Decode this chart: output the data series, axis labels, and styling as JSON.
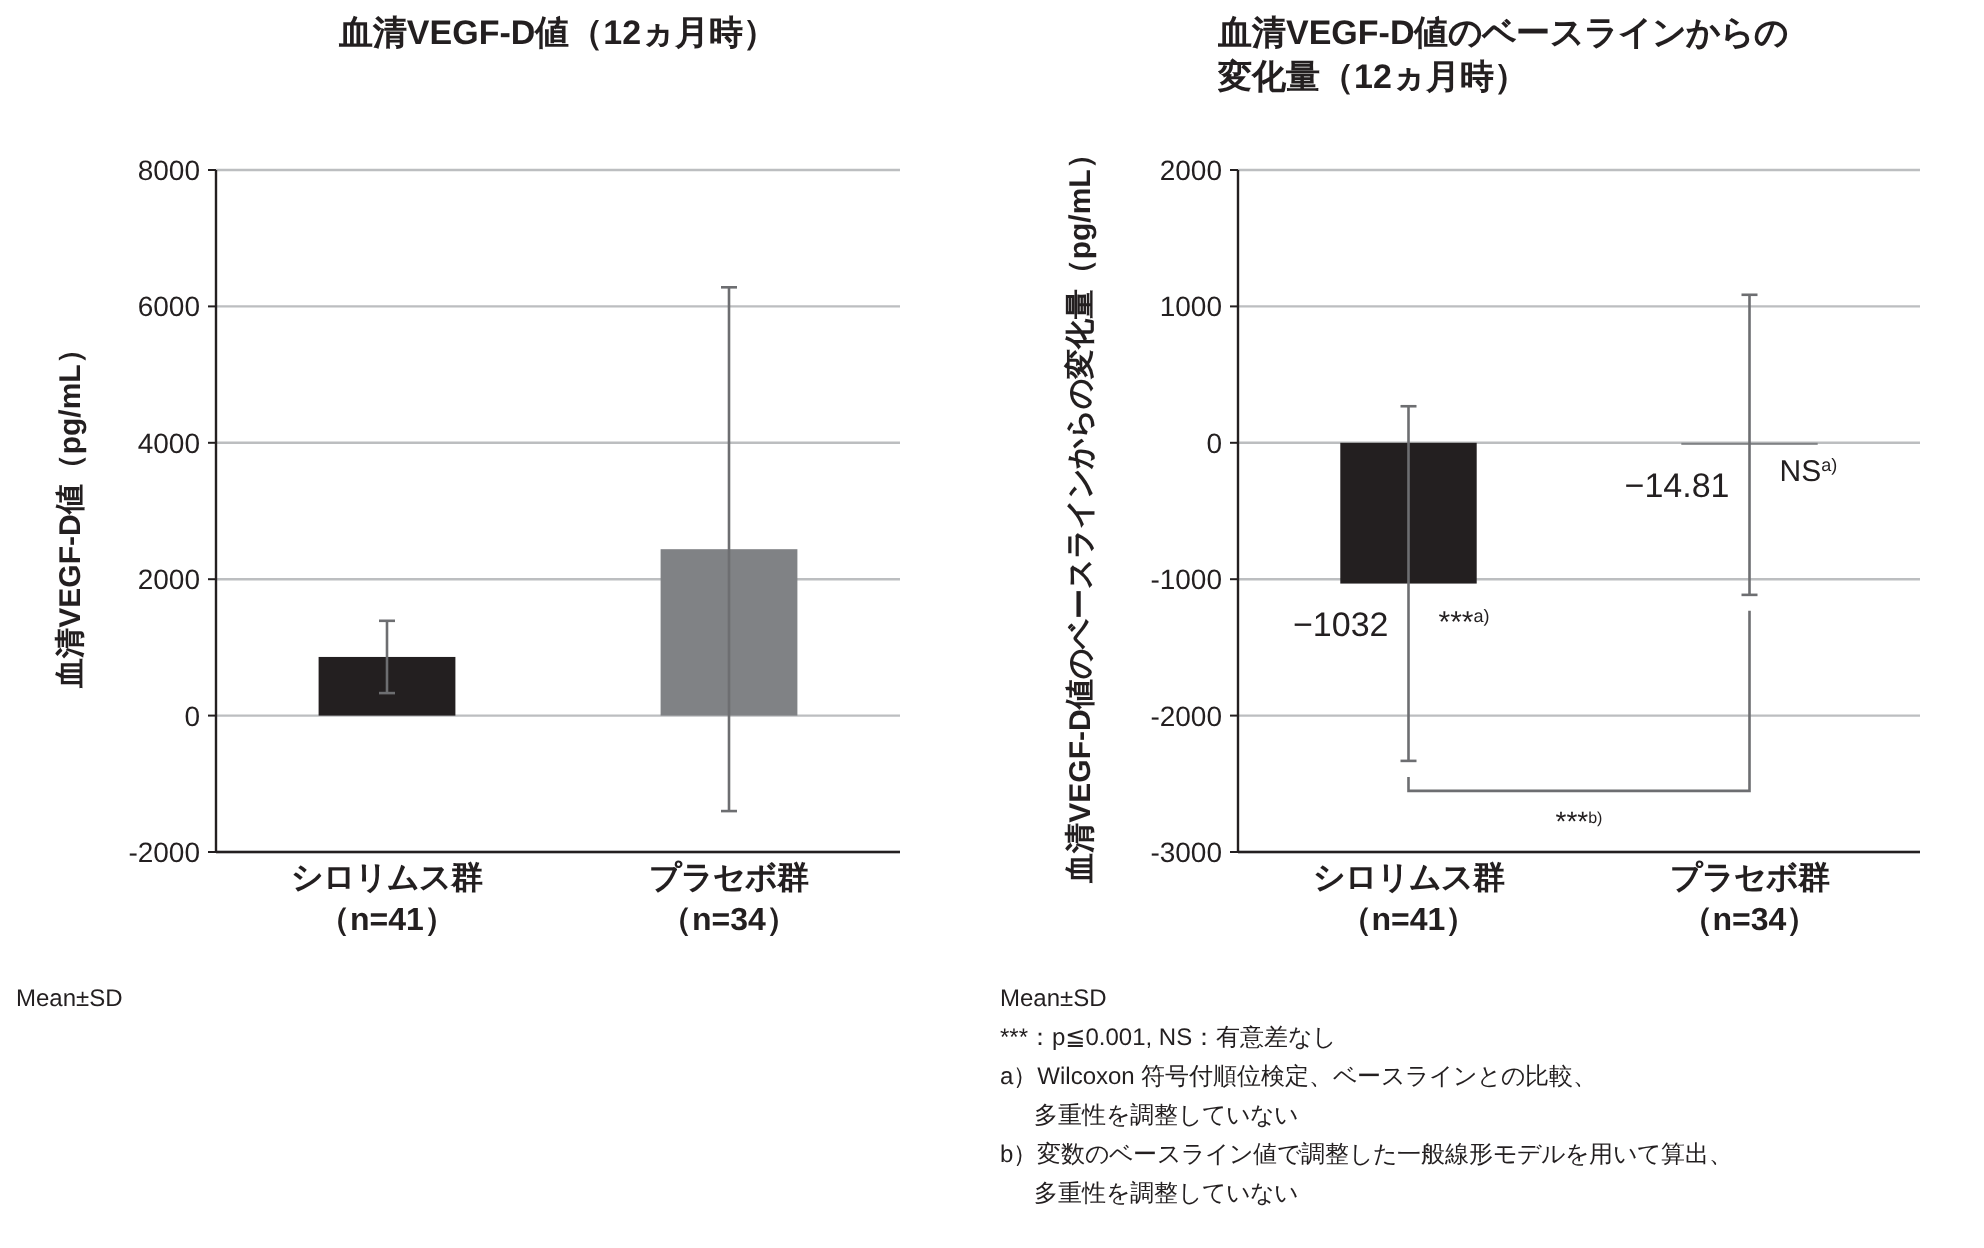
{
  "chart_data": [
    {
      "type": "bar",
      "title": "血清VEGF-D値（12ヵ月時）",
      "ylabel": "血清VEGF-D値（pg/mL）",
      "categories": [
        "シロリムス群（n=41）",
        "プラセボ群（n=34）"
      ],
      "values": [
        860,
        2440
      ],
      "colors": [
        "#231f20",
        "#808285"
      ],
      "errors": [
        530,
        3840
      ],
      "ylim": [
        -2000,
        8000
      ],
      "yticks": [
        -2000,
        0,
        2000,
        4000,
        6000,
        8000
      ],
      "grid": "y",
      "annotations": [
        "Mean±SD"
      ]
    },
    {
      "type": "bar",
      "title": "血清VEGF-D値のベースラインからの変化量（12ヵ月時）",
      "ylabel": "血清VEGF-D値のベースラインからの変化量（pg/mL）",
      "categories": [
        "シロリムス群（n=41）",
        "プラセボ群（n=34）"
      ],
      "values": [
        -1032,
        -14.81
      ],
      "colors": [
        "#231f20",
        "#808285"
      ],
      "errors": [
        1300,
        1100
      ],
      "value_labels": [
        "−1032",
        "−14.81"
      ],
      "ylim": [
        -3000,
        2000
      ],
      "yticks": [
        -3000,
        -2000,
        -1000,
        0,
        1000,
        2000
      ],
      "grid": "y",
      "annotations": [
        {
          "text": "***$^{a)}$",
          "x": "シロリムス群（n=41）",
          "y": -1300
        },
        {
          "text": "NS$^{a)}$",
          "x": "プラセボ群（n=34）",
          "y": -190
        },
        "***$^{b)}$",
        "Mean±SD",
        "***：p≦0.001, NS：有意差なし",
        "a）Wilcoxon 符号付順位検定、ベースラインとの比較、",
        "多重性を調整していない",
        "b）変数のベースライン値で調整した一般線形モデルを用いて算出、",
        "多重性を調整していない"
      ]
    }
  ]
}
